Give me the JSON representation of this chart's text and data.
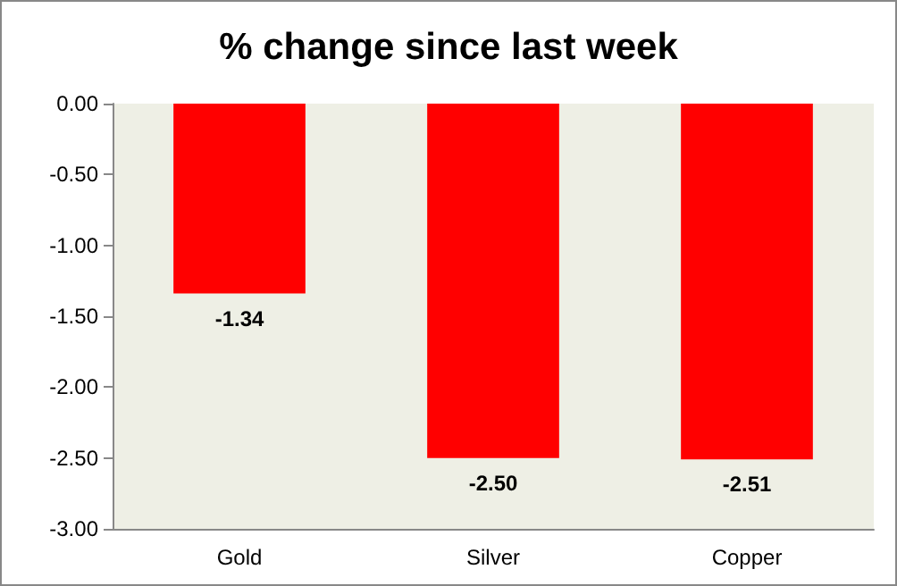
{
  "chart_data": {
    "type": "bar",
    "title": "% change since last week",
    "categories": [
      "Gold",
      "Silver",
      "Copper"
    ],
    "values": [
      -1.34,
      -2.5,
      -2.51
    ],
    "value_labels": [
      "-1.34",
      "-2.50",
      "-2.51"
    ],
    "color": "#ff0000",
    "ylim": [
      -3,
      0
    ],
    "yticks": [
      {
        "value": 0,
        "label": "0.00"
      },
      {
        "value": -0.5,
        "label": "-0.50"
      },
      {
        "value": -1,
        "label": "-1.00"
      },
      {
        "value": -1.5,
        "label": "-1.50"
      },
      {
        "value": -2,
        "label": "-2.00"
      },
      {
        "value": -2.5,
        "label": "-2.50"
      },
      {
        "value": -3,
        "label": "-3.00"
      }
    ],
    "grid": false
  }
}
